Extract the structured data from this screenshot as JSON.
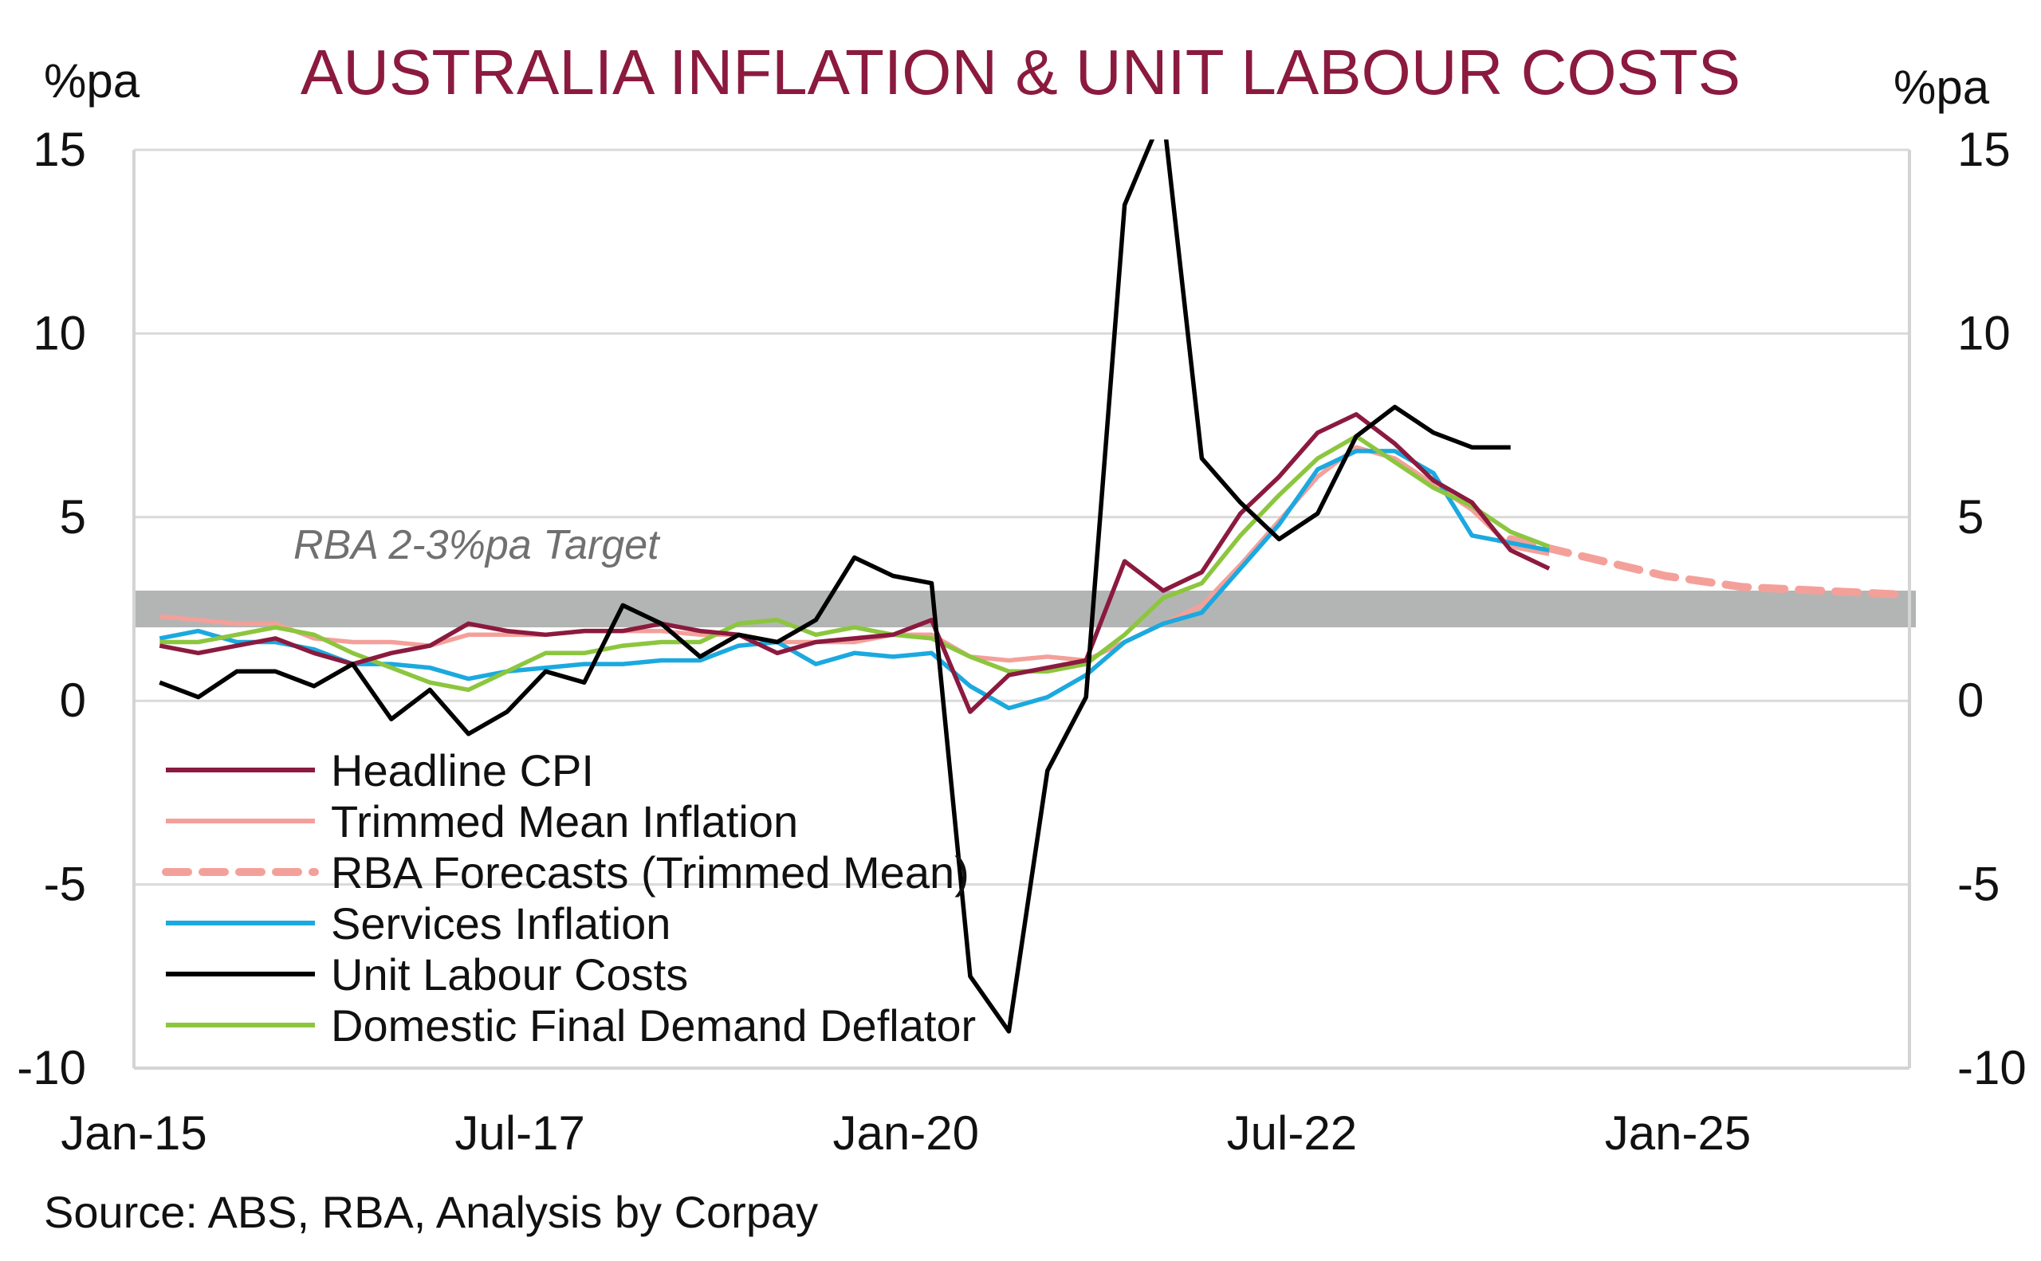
{
  "chart_data": {
    "type": "line",
    "title": "AUSTRALIA INFLATION & UNIT LABOUR COSTS",
    "ylabel_left": "%pa",
    "ylabel_right": "%pa",
    "ylim": [
      -10,
      15
    ],
    "yticks": [
      "15",
      "10",
      "5",
      "0",
      "-5",
      "-10"
    ],
    "yticks_right": [
      "15",
      "10",
      "5",
      "0",
      "-5",
      "-10"
    ],
    "xticks": [
      "Jan-15",
      "Jul-17",
      "Jan-20",
      "Jul-22",
      "Jan-25"
    ],
    "grid": true,
    "target_band": {
      "label": "RBA 2-3%pa Target",
      "low": 2,
      "high": 3,
      "color": "#b3b5b4"
    },
    "source": "Source: ABS, RBA, Analysis by Corpay",
    "series": [
      {
        "name": "Headline CPI",
        "color": "#8b1a3e",
        "dashed": false,
        "x": [
          "Mar-15",
          "Jun-15",
          "Sep-15",
          "Dec-15",
          "Mar-16",
          "Jun-16",
          "Sep-16",
          "Dec-16",
          "Mar-17",
          "Jun-17",
          "Sep-17",
          "Dec-17",
          "Mar-18",
          "Jun-18",
          "Sep-18",
          "Dec-18",
          "Mar-19",
          "Jun-19",
          "Sep-19",
          "Dec-19",
          "Mar-20",
          "Jun-20",
          "Sep-20",
          "Dec-20",
          "Mar-21",
          "Jun-21",
          "Sep-21",
          "Dec-21",
          "Mar-22",
          "Jun-22",
          "Sep-22",
          "Dec-22",
          "Mar-23",
          "Jun-23",
          "Sep-23",
          "Dec-23",
          "Mar-24"
        ],
        "y": [
          1.5,
          1.3,
          1.5,
          1.7,
          1.3,
          1.0,
          1.3,
          1.5,
          2.1,
          1.9,
          1.8,
          1.9,
          1.9,
          2.1,
          1.9,
          1.8,
          1.3,
          1.6,
          1.7,
          1.8,
          2.2,
          -0.3,
          0.7,
          0.9,
          1.1,
          3.8,
          3.0,
          3.5,
          5.1,
          6.1,
          7.3,
          7.8,
          7.0,
          6.0,
          5.4,
          4.1,
          3.6
        ]
      },
      {
        "name": "Trimmed Mean Inflation",
        "color": "#f4a09a",
        "dashed": false,
        "x": [
          "Mar-15",
          "Jun-15",
          "Sep-15",
          "Dec-15",
          "Mar-16",
          "Jun-16",
          "Sep-16",
          "Dec-16",
          "Mar-17",
          "Jun-17",
          "Sep-17",
          "Dec-17",
          "Mar-18",
          "Jun-18",
          "Sep-18",
          "Dec-18",
          "Mar-19",
          "Jun-19",
          "Sep-19",
          "Dec-19",
          "Mar-20",
          "Jun-20",
          "Sep-20",
          "Dec-20",
          "Mar-21",
          "Jun-21",
          "Sep-21",
          "Dec-21",
          "Mar-22",
          "Jun-22",
          "Sep-22",
          "Dec-22",
          "Mar-23",
          "Jun-23",
          "Sep-23",
          "Dec-23",
          "Mar-24"
        ],
        "y": [
          2.3,
          2.2,
          2.1,
          2.1,
          1.7,
          1.6,
          1.6,
          1.5,
          1.8,
          1.8,
          1.8,
          1.9,
          1.9,
          1.9,
          1.8,
          1.8,
          1.6,
          1.6,
          1.6,
          1.8,
          1.8,
          1.2,
          1.1,
          1.2,
          1.1,
          1.6,
          2.1,
          2.6,
          3.7,
          4.9,
          6.1,
          6.9,
          6.6,
          5.9,
          5.2,
          4.2,
          4.0
        ]
      },
      {
        "name": "RBA Forecasts (Trimmed Mean)",
        "color": "#f4a09a",
        "dashed": true,
        "x": [
          "Dec-23",
          "Jun-24",
          "Dec-24",
          "Jun-25",
          "Dec-25",
          "Jun-26"
        ],
        "y": [
          4.4,
          3.9,
          3.4,
          3.1,
          3.0,
          2.9
        ]
      },
      {
        "name": "Services Inflation",
        "color": "#1ba9df",
        "dashed": false,
        "x": [
          "Mar-15",
          "Jun-15",
          "Sep-15",
          "Dec-15",
          "Mar-16",
          "Jun-16",
          "Sep-16",
          "Dec-16",
          "Mar-17",
          "Jun-17",
          "Sep-17",
          "Dec-17",
          "Mar-18",
          "Jun-18",
          "Sep-18",
          "Dec-18",
          "Mar-19",
          "Jun-19",
          "Sep-19",
          "Dec-19",
          "Mar-20",
          "Jun-20",
          "Sep-20",
          "Dec-20",
          "Mar-21",
          "Jun-21",
          "Sep-21",
          "Dec-21",
          "Mar-22",
          "Jun-22",
          "Sep-22",
          "Dec-22",
          "Mar-23",
          "Jun-23",
          "Sep-23",
          "Dec-23",
          "Mar-24"
        ],
        "y": [
          1.7,
          1.9,
          1.6,
          1.6,
          1.4,
          1.0,
          1.0,
          0.9,
          0.6,
          0.8,
          0.9,
          1.0,
          1.0,
          1.1,
          1.1,
          1.5,
          1.6,
          1.0,
          1.3,
          1.2,
          1.3,
          0.4,
          -0.2,
          0.1,
          0.7,
          1.6,
          2.1,
          2.4,
          3.6,
          4.8,
          6.3,
          6.8,
          6.8,
          6.2,
          4.5,
          4.3,
          4.1
        ]
      },
      {
        "name": "Unit Labour Costs",
        "color": "#000000",
        "dashed": false,
        "x": [
          "Mar-15",
          "Jun-15",
          "Sep-15",
          "Dec-15",
          "Mar-16",
          "Jun-16",
          "Sep-16",
          "Dec-16",
          "Mar-17",
          "Jun-17",
          "Sep-17",
          "Dec-17",
          "Mar-18",
          "Jun-18",
          "Sep-18",
          "Dec-18",
          "Mar-19",
          "Jun-19",
          "Sep-19",
          "Dec-19",
          "Mar-20",
          "Jun-20",
          "Sep-20",
          "Dec-20",
          "Mar-21",
          "Jun-21",
          "Sep-21",
          "Dec-21",
          "Mar-22",
          "Jun-22",
          "Sep-22",
          "Dec-22",
          "Mar-23",
          "Jun-23",
          "Sep-23",
          "Dec-23"
        ],
        "y": [
          0.5,
          0.1,
          0.8,
          0.8,
          0.4,
          1.0,
          -0.5,
          0.3,
          -0.9,
          -0.3,
          0.8,
          0.5,
          2.6,
          2.1,
          1.2,
          1.8,
          1.6,
          2.2,
          3.9,
          3.4,
          3.2,
          -7.5,
          -9.0,
          -1.9,
          0.1,
          13.5,
          16.0,
          6.6,
          5.4,
          4.4,
          5.1,
          7.2,
          8.0,
          7.3,
          6.9,
          6.9
        ]
      },
      {
        "name": "Domestic Final Demand Deflator",
        "color": "#8cc63f",
        "dashed": false,
        "x": [
          "Mar-15",
          "Jun-15",
          "Sep-15",
          "Dec-15",
          "Mar-16",
          "Jun-16",
          "Sep-16",
          "Dec-16",
          "Mar-17",
          "Jun-17",
          "Sep-17",
          "Dec-17",
          "Mar-18",
          "Jun-18",
          "Sep-18",
          "Dec-18",
          "Mar-19",
          "Jun-19",
          "Sep-19",
          "Dec-19",
          "Mar-20",
          "Jun-20",
          "Sep-20",
          "Dec-20",
          "Mar-21",
          "Jun-21",
          "Sep-21",
          "Dec-21",
          "Mar-22",
          "Jun-22",
          "Sep-22",
          "Dec-22",
          "Mar-23",
          "Jun-23",
          "Sep-23",
          "Dec-23",
          "Mar-24"
        ],
        "y": [
          1.6,
          1.6,
          1.8,
          2.0,
          1.8,
          1.3,
          0.9,
          0.5,
          0.3,
          0.8,
          1.3,
          1.3,
          1.5,
          1.6,
          1.6,
          2.1,
          2.2,
          1.8,
          2.0,
          1.8,
          1.7,
          1.2,
          0.8,
          0.8,
          1.0,
          1.8,
          2.8,
          3.2,
          4.5,
          5.6,
          6.6,
          7.2,
          6.5,
          5.8,
          5.3,
          4.6,
          4.2
        ]
      }
    ]
  }
}
